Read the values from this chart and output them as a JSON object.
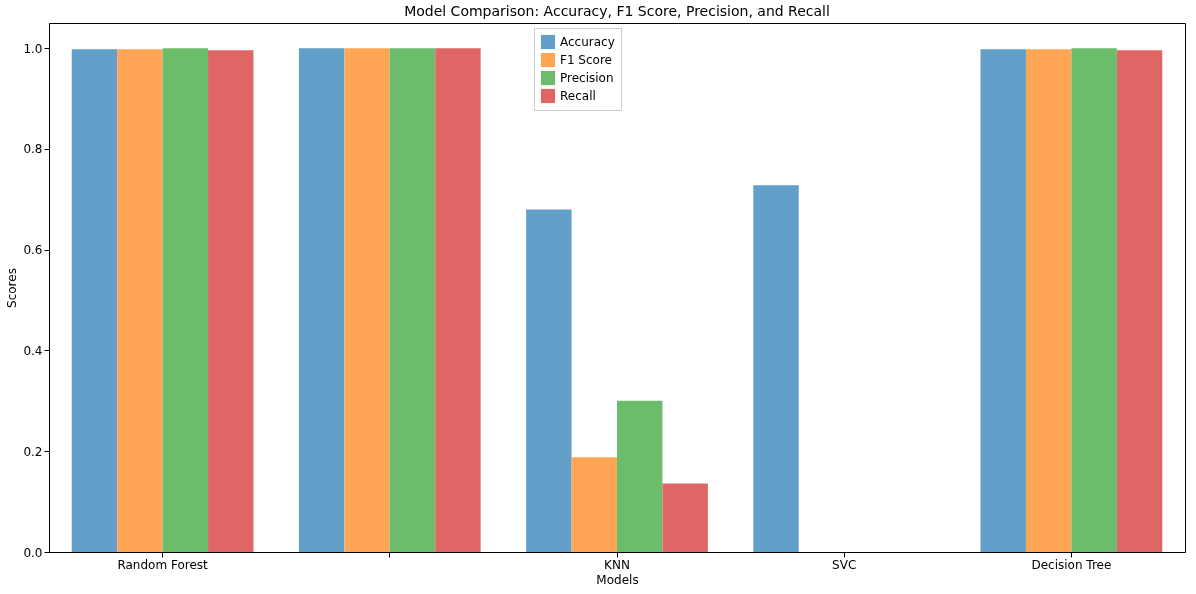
{
  "chart_data": {
    "type": "bar",
    "title": "Model Comparison: Accuracy, F1 Score, Precision, and Recall",
    "xlabel": "Models",
    "ylabel": "Scores",
    "categories": [
      "Random Forest",
      null,
      "KNN",
      "SVC",
      "Decision Tree"
    ],
    "series": [
      {
        "name": "Accuracy",
        "color": "#62a0ca",
        "values": [
          0.998,
          1.0,
          0.68,
          0.728,
          0.998
        ]
      },
      {
        "name": "F1 Score",
        "color": "#ffa556",
        "values": [
          0.998,
          1.0,
          0.188,
          0.0,
          0.998
        ]
      },
      {
        "name": "Precision",
        "color": "#6bbc6b",
        "values": [
          1.0,
          1.0,
          0.3,
          0.0,
          1.0
        ]
      },
      {
        "name": "Recall",
        "color": "#e06666",
        "values": [
          0.996,
          1.0,
          0.136,
          0.0,
          0.996
        ]
      }
    ],
    "ylim": [
      0,
      1.05
    ],
    "yticks": [
      {
        "value": 0,
        "label": "0.0"
      },
      0.2,
      0.4,
      0.6,
      0.8,
      {
        "value": 1,
        "label": "1.0"
      }
    ],
    "grid": false,
    "legend": "top"
  }
}
